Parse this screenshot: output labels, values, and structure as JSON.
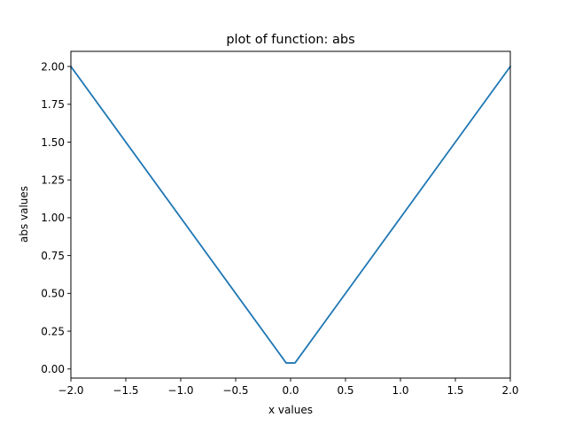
{
  "chart_data": {
    "type": "line",
    "title": "plot of function: abs",
    "xlabel": "x values",
    "ylabel": "abs values",
    "xlim": [
      -2.0,
      2.0
    ],
    "ylim": [
      -0.06,
      2.1
    ],
    "xticks": [
      -2.0,
      -1.5,
      -1.0,
      -0.5,
      0.0,
      0.5,
      1.0,
      1.5,
      2.0
    ],
    "xtick_labels": [
      "−2.0",
      "−1.5",
      "−1.0",
      "−0.5",
      "0.0",
      "0.5",
      "1.0",
      "1.5",
      "2.0"
    ],
    "yticks": [
      0.0,
      0.25,
      0.5,
      0.75,
      1.0,
      1.25,
      1.5,
      1.75,
      2.0
    ],
    "ytick_labels": [
      "0.00",
      "0.25",
      "0.50",
      "0.75",
      "1.00",
      "1.25",
      "1.50",
      "1.75",
      "2.00"
    ],
    "grid": false,
    "series": [
      {
        "color": "#1f77b4",
        "x": [
          -2.0,
          -0.04,
          0.04,
          2.0
        ],
        "y": [
          2.0,
          0.04,
          0.04,
          2.0
        ]
      }
    ]
  }
}
